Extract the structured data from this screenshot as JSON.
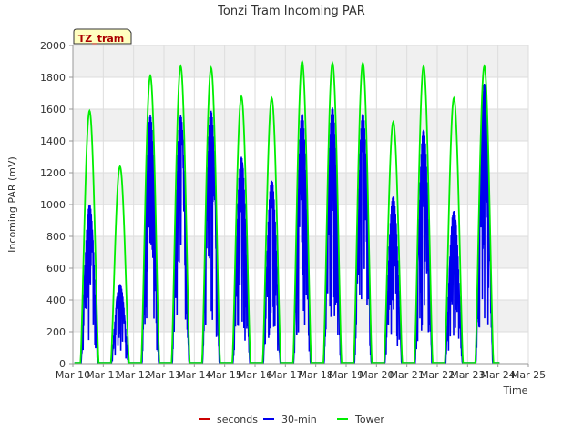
{
  "chart_data": {
    "type": "line",
    "title": "Tonzi Tram Incoming PAR",
    "xlabel": "Time",
    "ylabel": "Incoming PAR (mV)",
    "annotation": "TZ_tram",
    "xlim": [
      10,
      25
    ],
    "ylim": [
      0,
      2000
    ],
    "x_ticks": [
      "Mar 10",
      "Mar 11",
      "Mar 12",
      "Mar 13",
      "Mar 14",
      "Mar 15",
      "Mar 16",
      "Mar 17",
      "Mar 18",
      "Mar 19",
      "Mar 20",
      "Mar 21",
      "Mar 22",
      "Mar 23",
      "Mar 24",
      "Mar 25"
    ],
    "y_ticks": [
      0,
      200,
      400,
      600,
      800,
      1000,
      1200,
      1400,
      1600,
      1800,
      2000
    ],
    "grid": true,
    "legend_position": "bottom",
    "series": [
      {
        "name": "seconds",
        "color": "#cc0000",
        "daily_peaks": []
      },
      {
        "name": "30-min",
        "color": "#0000ee",
        "daily_peaks": [
          1000,
          500,
          1560,
          1560,
          1590,
          1300,
          1150,
          1570,
          1610,
          1570,
          1050,
          1470,
          960,
          1760
        ]
      },
      {
        "name": "Tower",
        "color": "#00ee00",
        "daily_peaks": [
          1590,
          1240,
          1810,
          1870,
          1860,
          1680,
          1670,
          1900,
          1890,
          1890,
          1520,
          1870,
          1670,
          1870
        ]
      }
    ],
    "day_centers": [
      10.55,
      11.55,
      12.55,
      13.55,
      14.55,
      15.55,
      16.55,
      17.55,
      18.55,
      19.55,
      20.55,
      21.55,
      22.55,
      23.55
    ]
  }
}
